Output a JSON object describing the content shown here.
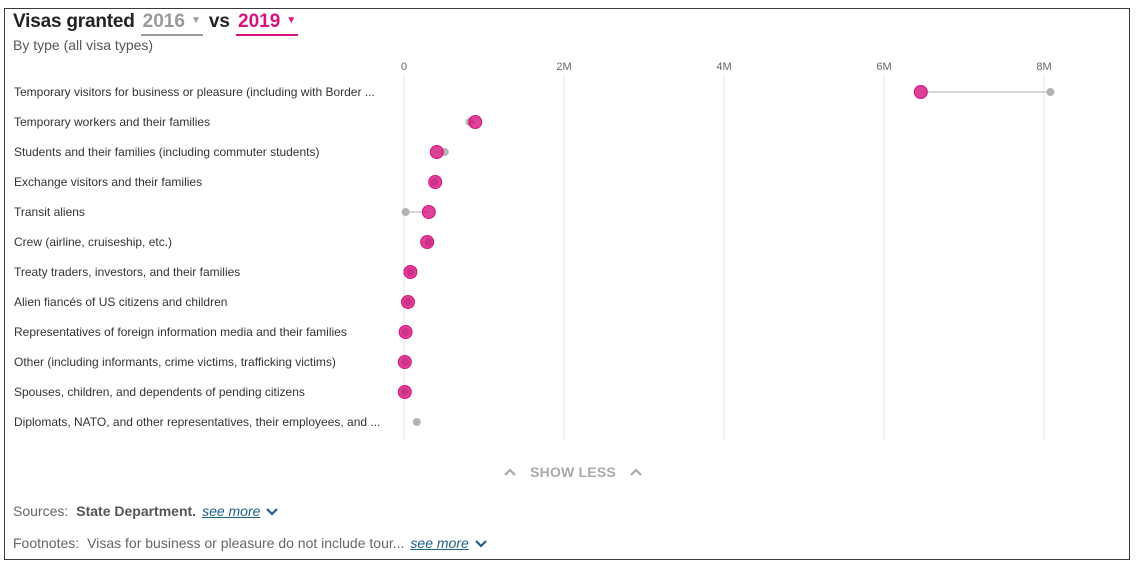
{
  "header": {
    "title": "Visas granted",
    "year_a": "2016",
    "vs": "vs",
    "year_b": "2019",
    "subtitle": "By type (all visa types)"
  },
  "colors": {
    "year_a": "#b3b3b3",
    "year_b": "#d6127e",
    "connector": "#cccccc",
    "grid": "#e3e3e3"
  },
  "chart_data": {
    "type": "dot-range",
    "xlim": [
      0,
      8500000
    ],
    "ticks": [
      {
        "value": 0,
        "label": "0"
      },
      {
        "value": 2000000,
        "label": "2M"
      },
      {
        "value": 4000000,
        "label": "4M"
      },
      {
        "value": 6000000,
        "label": "6M"
      },
      {
        "value": 8000000,
        "label": "8M"
      }
    ],
    "series": [
      {
        "name": "2016"
      },
      {
        "name": "2019"
      }
    ],
    "categories": [
      "Temporary visitors for business or pleasure (including with Border ...",
      "Temporary workers and their families",
      "Students and their families (including commuter students)",
      "Exchange visitors and their families",
      "Transit aliens",
      "Crew (airline, cruiseship, etc.)",
      "Treaty traders, investors, and their families",
      "Alien fiancés of US citizens and children",
      "Representatives of foreign information media and their families",
      "Other (including informants, crime victims, trafficking victims)",
      "Spouses, children, and dependents of pending citizens",
      "Diplomats, NATO, and other representatives, their employees, and ..."
    ],
    "values_2016": [
      8080000,
      820000,
      510000,
      380000,
      20000,
      310000,
      80000,
      50000,
      20000,
      15000,
      10000,
      160000
    ],
    "values_2019": [
      6460000,
      890000,
      410000,
      390000,
      310000,
      290000,
      80000,
      50000,
      20000,
      10000,
      10000,
      null
    ],
    "legend": "none",
    "grid": "vertical"
  },
  "controls": {
    "show_less": "SHOW LESS"
  },
  "footer": {
    "sources_label": "Sources:",
    "sources_value": "State Department.",
    "footnotes_label": "Footnotes:",
    "footnotes_value": "Visas for business or pleasure do not include tour...",
    "see_more": "see more"
  }
}
